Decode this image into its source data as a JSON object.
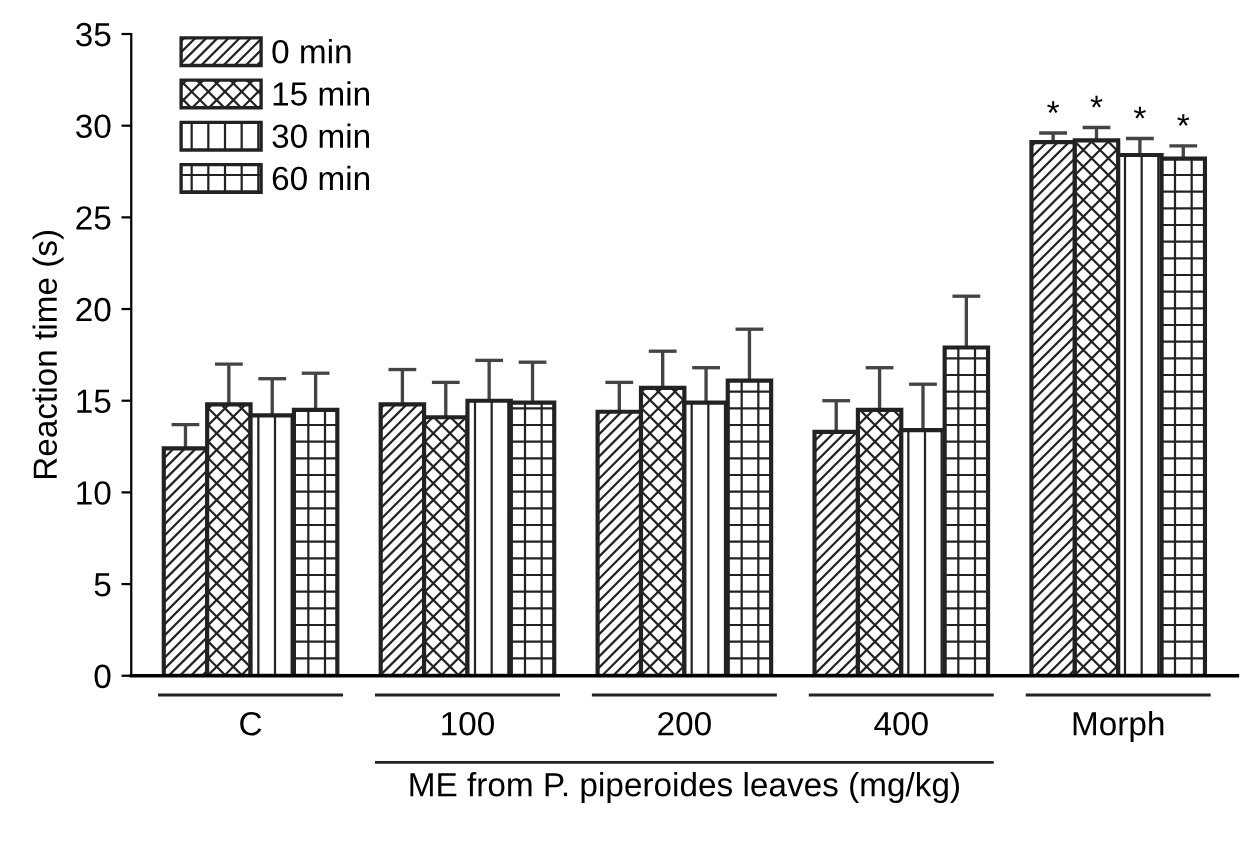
{
  "chart_data": {
    "type": "bar",
    "ylabel": "Reaction time (s)",
    "xlabel": "ME from P. piperoides leaves (mg/kg)",
    "categories": [
      "C",
      "100",
      "200",
      "400",
      "Morph"
    ],
    "series": [
      {
        "name": "0 min",
        "color": "#222222",
        "values": [
          12.4,
          14.8,
          14.4,
          13.3,
          29.1
        ],
        "errors": [
          1.3,
          1.9,
          1.6,
          1.7,
          0.5
        ]
      },
      {
        "name": "15 min",
        "color": "#222222",
        "values": [
          14.8,
          14.1,
          15.7,
          14.5,
          29.2
        ],
        "errors": [
          2.2,
          1.9,
          2.0,
          2.3,
          0.7
        ]
      },
      {
        "name": "30 min",
        "color": "#222222",
        "values": [
          14.2,
          15.0,
          14.9,
          13.4,
          28.4
        ],
        "errors": [
          2.0,
          2.2,
          1.9,
          2.5,
          0.9
        ]
      },
      {
        "name": "60 min",
        "color": "#222222",
        "values": [
          14.5,
          14.9,
          16.1,
          17.9,
          28.2
        ],
        "errors": [
          2.0,
          2.2,
          2.8,
          2.8,
          0.7
        ]
      }
    ],
    "annotations": [
      {
        "text": "*",
        "x": "Morph",
        "y": 29.1
      },
      {
        "text": "*",
        "x": "Morph",
        "y": 29.2
      },
      {
        "text": "*",
        "x": "Morph",
        "y": 28.4
      },
      {
        "text": "*",
        "x": "Morph",
        "y": 28.2
      }
    ],
    "ylim": [
      0,
      35
    ],
    "yticks": [
      0,
      5,
      10,
      15,
      20,
      25,
      30,
      35
    ],
    "grid": false,
    "legend": "top left"
  }
}
